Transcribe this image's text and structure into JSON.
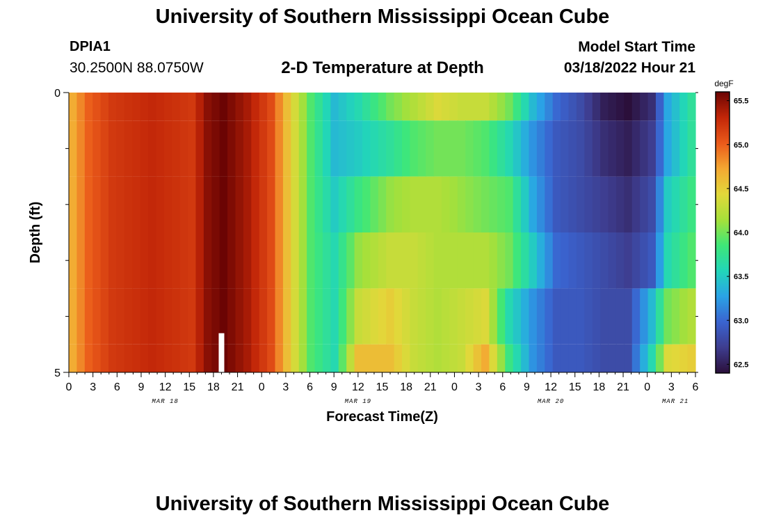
{
  "header": {
    "title": "University of Southern Mississippi Ocean Cube",
    "station": "DPIA1",
    "coords": "30.2500N  88.0750W",
    "subtitle": "2-D Temperature at Depth",
    "model_start_label": "Model Start Time",
    "model_start_value": "03/18/2022 Hour 21"
  },
  "footer": {
    "title": "University of Southern Mississippi Ocean Cube"
  },
  "colors": {
    "scale": [
      "#2b0f3a",
      "#3e3d8f",
      "#3a64d0",
      "#2aa3e6",
      "#22d6b8",
      "#3fe777",
      "#a6e03a",
      "#e2d83a",
      "#f4a832",
      "#ea5a1a",
      "#c22608",
      "#6b0403"
    ],
    "marker": "#ffffff"
  },
  "chart_data": {
    "type": "heatmap",
    "xlabel": "Forecast Time(Z)",
    "ylabel": "Depth (ft)",
    "y_tick_labels": [
      "0",
      "5"
    ],
    "ylim": [
      5,
      0
    ],
    "x_hours_step": 1,
    "x_start": "03/18/2022 00Z",
    "x_tick_labels": [
      "0",
      "3",
      "6",
      "9",
      "12",
      "15",
      "18",
      "21",
      "0",
      "3",
      "6",
      "9",
      "12",
      "15",
      "18",
      "21",
      "0",
      "3",
      "6",
      "9",
      "12",
      "15",
      "18",
      "21",
      "0",
      "3",
      "6"
    ],
    "date_labels": [
      "MAR 18",
      "MAR 19",
      "MAR 20",
      "MAR 21"
    ],
    "colorbar": {
      "unit": "degF",
      "range": [
        62.4,
        65.6
      ],
      "tick_labels": [
        "62.5",
        "63.0",
        "63.5",
        "64.0",
        "64.5",
        "65.0",
        "65.5"
      ]
    },
    "marker_hour": 19,
    "keyframes_hours": [
      0,
      2,
      5,
      10,
      15,
      17,
      19,
      22,
      25,
      27,
      30,
      33,
      36,
      40,
      43,
      46,
      49,
      52,
      55,
      58,
      61,
      64,
      67,
      70,
      73,
      75,
      78
    ],
    "layers": [
      {
        "depth_range": [
          0.0,
          0.5
        ],
        "values": [
          64.7,
          65.0,
          65.2,
          65.3,
          65.2,
          65.5,
          65.6,
          65.4,
          65.1,
          64.6,
          63.9,
          63.4,
          63.6,
          64.0,
          64.2,
          64.4,
          64.3,
          64.3,
          64.0,
          63.4,
          63.0,
          62.8,
          62.5,
          62.4,
          62.6,
          63.3,
          63.7
        ]
      },
      {
        "depth_range": [
          0.5,
          1.5
        ],
        "values": [
          64.7,
          65.0,
          65.2,
          65.3,
          65.2,
          65.5,
          65.6,
          65.4,
          65.1,
          64.6,
          63.9,
          63.4,
          63.5,
          63.7,
          63.9,
          64.0,
          64.0,
          63.9,
          63.6,
          63.2,
          62.9,
          62.8,
          62.6,
          62.5,
          62.7,
          63.3,
          63.7
        ]
      },
      {
        "depth_range": [
          1.5,
          2.5
        ],
        "values": [
          64.7,
          65.0,
          65.2,
          65.3,
          65.2,
          65.5,
          65.6,
          65.4,
          65.1,
          64.6,
          63.9,
          63.5,
          63.8,
          64.1,
          64.2,
          64.2,
          64.1,
          64.0,
          63.9,
          63.3,
          62.9,
          62.8,
          62.7,
          62.6,
          62.8,
          63.5,
          63.8
        ]
      },
      {
        "depth_range": [
          2.5,
          3.5
        ],
        "values": [
          64.7,
          65.0,
          65.2,
          65.3,
          65.2,
          65.5,
          65.6,
          65.4,
          65.1,
          64.6,
          63.9,
          63.6,
          64.1,
          64.3,
          64.3,
          64.2,
          64.2,
          64.2,
          64.0,
          63.5,
          63.0,
          62.9,
          62.8,
          62.7,
          62.9,
          63.6,
          63.9
        ]
      },
      {
        "depth_range": [
          3.5,
          4.5
        ],
        "values": [
          64.7,
          65.0,
          65.2,
          65.3,
          65.2,
          65.5,
          65.6,
          65.4,
          65.1,
          64.6,
          63.9,
          63.6,
          64.3,
          64.5,
          64.3,
          64.2,
          64.3,
          64.4,
          63.6,
          63.2,
          62.9,
          62.9,
          62.8,
          62.8,
          63.4,
          64.0,
          64.2
        ]
      },
      {
        "depth_range": [
          4.5,
          5.0
        ],
        "values": [
          64.7,
          65.0,
          65.2,
          65.3,
          65.2,
          65.5,
          65.6,
          65.4,
          65.1,
          64.6,
          63.9,
          63.6,
          64.6,
          64.6,
          64.3,
          64.2,
          64.3,
          64.7,
          63.8,
          63.2,
          62.9,
          62.9,
          62.8,
          62.8,
          63.6,
          64.4,
          64.5
        ]
      }
    ]
  }
}
